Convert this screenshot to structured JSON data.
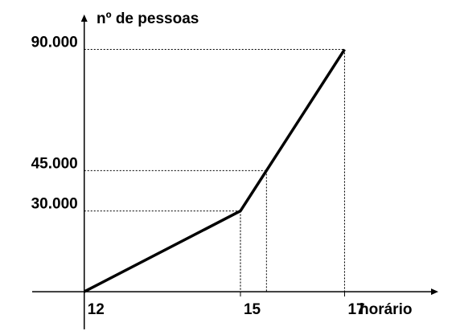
{
  "chart_data": {
    "type": "line",
    "x": [
      12,
      15,
      17
    ],
    "series": [
      {
        "name": null,
        "color": "#000000",
        "values": [
          0,
          30000,
          90000
        ]
      }
    ],
    "xlabel": "horário",
    "ylabel": "nº de pessoas",
    "xlim": [
      11,
      18.8
    ],
    "ylim": [
      -14000,
      103000
    ],
    "xticks": [
      12,
      15,
      17
    ],
    "yticks": [
      {
        "value": 30000,
        "label": "30.000"
      },
      {
        "value": 45000,
        "label": "45.000"
      },
      {
        "value": 90000,
        "label": "90.000"
      }
    ]
  }
}
